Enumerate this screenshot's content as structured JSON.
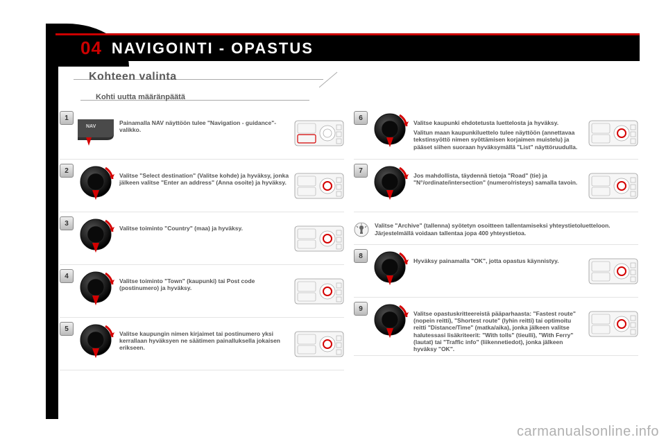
{
  "colors": {
    "accent": "#c00000",
    "black": "#000000",
    "text": "#555555",
    "grey": "#5a5a5a",
    "panel_border": "#888888",
    "dial_outer": "#2b2b2b",
    "dial_inner": "#0e0e0e",
    "arrow_red": "#d40000",
    "watermark": "#b0b0b0"
  },
  "header": {
    "number": "04",
    "title": "NAVIGOINTI - OPASTUS"
  },
  "subtitle": "Kohteen valinta",
  "subtitle2": "Kohti uutta määränpäätä",
  "watermark": "carmanualsonline.info",
  "left_steps": [
    {
      "n": "1",
      "icon": "nav",
      "text": "Painamalla NAV näyttöön tulee \"Navigation - guidance\"-valikko.",
      "panel": true
    },
    {
      "n": "2",
      "icon": "dial",
      "text": "Valitse \"Select destination\" (Valitse kohde) ja hyväksy, jonka jälkeen valitse \"Enter an address\" (Anna osoite) ja hyväksy.",
      "panel": true
    },
    {
      "n": "3",
      "icon": "dial",
      "text": "Valitse toiminto \"Country\" (maa) ja hyväksy.",
      "panel": true
    },
    {
      "n": "4",
      "icon": "dial",
      "text": "Valitse toiminto \"Town\" (kaupunki) tai Post code (postinumero) ja hyväksy.",
      "panel": true
    },
    {
      "n": "5",
      "icon": "dial",
      "text": "Valitse kaupungin nimen kirjaimet tai postinumero yksi kerrallaan hyväksyen ne säätimen painalluksella jokaisen erikseen.",
      "panel": true
    }
  ],
  "right_steps_a": [
    {
      "n": "6",
      "icon": "dial",
      "text": "Valitse kaupunki ehdotetusta luettelosta ja hyväksy.",
      "text2": "Valitun maan kaupunkiluettelo tulee näyttöön (annettavaa tekstinsyöttö nimen syöttämisen korjaimen muistelu) ja pääset siihen suoraan hyväksymällä \"List\" näyttöruudulla.",
      "panel": true
    },
    {
      "n": "7",
      "icon": "dial",
      "text": "Jos mahdollista, täydennä tietoja \"Road\" (tie) ja \"N°/ordinate/intersection\" (numero/risteys) samalla tavoin.",
      "panel": true
    }
  ],
  "tip": {
    "line1": "Valitse \"Archive\" (tallenna) syötetyn osoitteen tallentamiseksi yhteystietoluetteloon.",
    "line2": "Järjestelmällä voidaan tallentaa jopa 400 yhteystietoa."
  },
  "right_steps_b": [
    {
      "n": "8",
      "icon": "dial",
      "text": "Hyväksy painamalla \"OK\", jotta opastus käynnistyy.",
      "panel": true
    },
    {
      "n": "9",
      "icon": "dial",
      "text": "Valitse opastuskritteereistä pääparhaasta: \"Fastest route\" (nopein reitti), \"Shortest route\" (lyhin reitti) tai optimoitu reitti \"Distance/Time\" (matka/aika), jonka jälkeen valitse halutessasi lisäkriteerit: \"With tolls\" (tieulli), \"With Ferry\" (lautat) tai \"Traffic info\" (liikennetiedot), jonka jälkeen hyväksy \"OK\".",
      "panel": true
    }
  ]
}
